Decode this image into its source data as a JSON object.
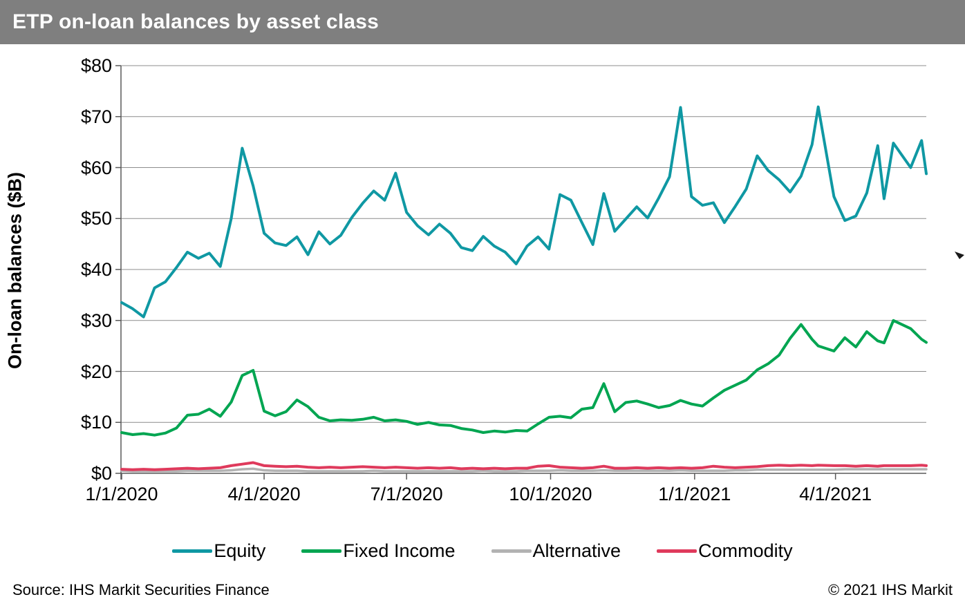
{
  "header": {
    "title": "ETP on-loan balances by asset class"
  },
  "footer": {
    "source": "Source: IHS Markit Securities Finance",
    "copyright": "© 2021 IHS Markit"
  },
  "colors": {
    "header_bar": "#7f7f7f",
    "gridline": "#8c8c8c",
    "axis": "#595959",
    "equity": "#0f98a3",
    "fixed_income": "#00a551",
    "alternative": "#b2b2b2",
    "commodity": "#df3a5c"
  },
  "chart_data": {
    "type": "line",
    "title": "ETP on-loan balances by asset class",
    "xlabel": "",
    "ylabel": "On-loan balances ($B)",
    "ylim": [
      0,
      80
    ],
    "ytick_values": [
      0,
      10,
      20,
      30,
      40,
      50,
      60,
      70,
      80
    ],
    "ytick_labels": [
      "$0",
      "$10",
      "$20",
      "$30",
      "$40",
      "$50",
      "$60",
      "$70",
      "$80"
    ],
    "grid": "horizontal",
    "legend_position": "bottom",
    "x_unit": "days since 1/1/2020",
    "x_range": [
      0,
      514
    ],
    "xticks": [
      {
        "label": "1/1/2020",
        "day": 0
      },
      {
        "label": "4/1/2020",
        "day": 91
      },
      {
        "label": "7/1/2020",
        "day": 182
      },
      {
        "label": "10/1/2020",
        "day": 274
      },
      {
        "label": "1/1/2021",
        "day": 366
      },
      {
        "label": "4/1/2021",
        "day": 456
      }
    ],
    "x_days": [
      0,
      7,
      14,
      21,
      28,
      35,
      42,
      49,
      56,
      63,
      70,
      77,
      84,
      91,
      98,
      105,
      112,
      119,
      126,
      133,
      140,
      147,
      154,
      161,
      168,
      175,
      182,
      189,
      196,
      203,
      210,
      217,
      224,
      231,
      238,
      245,
      252,
      259,
      266,
      273,
      280,
      287,
      294,
      301,
      308,
      315,
      322,
      329,
      336,
      343,
      350,
      357,
      364,
      371,
      378,
      385,
      392,
      399,
      406,
      413,
      420,
      427,
      434,
      441,
      445,
      455,
      462,
      469,
      476,
      483,
      487,
      493,
      504,
      511,
      514
    ],
    "series": [
      {
        "name": "Equity",
        "color": "#0f98a3",
        "line_width": 4,
        "values": [
          33.5,
          32.3,
          30.7,
          36.4,
          37.6,
          40.4,
          43.4,
          42.2,
          43.2,
          40.6,
          50.0,
          63.8,
          56.4,
          47.1,
          45.2,
          44.7,
          46.4,
          42.9,
          47.4,
          45.0,
          46.7,
          50.2,
          53.0,
          55.4,
          53.6,
          58.9,
          51.2,
          48.6,
          46.8,
          48.9,
          47.1,
          44.3,
          43.7,
          46.5,
          44.6,
          43.4,
          41.1,
          44.6,
          46.4,
          44.0,
          54.7,
          53.6,
          49.2,
          44.9,
          54.9,
          47.5,
          49.9,
          52.3,
          50.1,
          54.0,
          58.2,
          71.8,
          54.3,
          52.6,
          53.1,
          49.2,
          52.4,
          55.8,
          62.3,
          59.4,
          57.6,
          55.2,
          58.3,
          64.5,
          71.9,
          54.3,
          49.6,
          50.5,
          55.0,
          64.3,
          53.9,
          64.8,
          60.0,
          65.3,
          58.8
        ]
      },
      {
        "name": "Fixed Income",
        "color": "#00a551",
        "line_width": 4,
        "values": [
          8.0,
          7.6,
          7.8,
          7.5,
          7.9,
          8.9,
          11.4,
          11.6,
          12.6,
          11.2,
          14.0,
          19.2,
          20.2,
          12.2,
          11.3,
          12.1,
          14.4,
          13.1,
          11.0,
          10.3,
          10.5,
          10.4,
          10.6,
          11.0,
          10.3,
          10.5,
          10.2,
          9.6,
          10.0,
          9.5,
          9.4,
          8.8,
          8.5,
          8.0,
          8.3,
          8.1,
          8.4,
          8.3,
          9.7,
          11.0,
          11.2,
          10.9,
          12.6,
          12.9,
          17.6,
          12.1,
          13.9,
          14.2,
          13.6,
          12.9,
          13.3,
          14.3,
          13.6,
          13.2,
          14.8,
          16.3,
          17.3,
          18.3,
          20.3,
          21.5,
          23.2,
          26.5,
          29.2,
          26.3,
          25.0,
          24.0,
          26.6,
          24.8,
          27.8,
          26.0,
          25.6,
          30.0,
          28.4,
          26.3,
          25.7
        ]
      },
      {
        "name": "Alternative",
        "color": "#b2b2b2",
        "line_width": 3.5,
        "values": [
          0.5,
          0.4,
          0.4,
          0.4,
          0.4,
          0.4,
          0.5,
          0.5,
          0.5,
          0.5,
          0.6,
          0.8,
          0.9,
          0.6,
          0.5,
          0.5,
          0.5,
          0.4,
          0.4,
          0.4,
          0.4,
          0.4,
          0.4,
          0.5,
          0.4,
          0.4,
          0.4,
          0.4,
          0.4,
          0.4,
          0.4,
          0.4,
          0.4,
          0.5,
          0.4,
          0.4,
          0.4,
          0.5,
          0.5,
          0.5,
          0.6,
          0.5,
          0.5,
          0.5,
          0.6,
          0.5,
          0.5,
          0.5,
          0.5,
          0.5,
          0.5,
          0.6,
          0.5,
          0.5,
          0.5,
          0.5,
          0.6,
          0.6,
          0.7,
          0.7,
          0.7,
          0.7,
          0.7,
          0.7,
          0.7,
          0.7,
          0.8,
          0.8,
          0.8,
          0.8,
          0.8,
          0.8,
          0.8,
          0.8,
          0.8
        ]
      },
      {
        "name": "Commodity",
        "color": "#df3a5c",
        "line_width": 4,
        "values": [
          0.8,
          0.7,
          0.8,
          0.7,
          0.8,
          0.9,
          1.0,
          0.9,
          1.0,
          1.1,
          1.5,
          1.8,
          2.1,
          1.5,
          1.4,
          1.3,
          1.4,
          1.2,
          1.1,
          1.2,
          1.1,
          1.2,
          1.3,
          1.2,
          1.1,
          1.2,
          1.1,
          1.0,
          1.1,
          1.0,
          1.1,
          0.9,
          1.0,
          0.9,
          1.0,
          0.9,
          1.0,
          1.0,
          1.4,
          1.5,
          1.2,
          1.1,
          1.0,
          1.1,
          1.4,
          1.0,
          1.0,
          1.1,
          1.0,
          1.1,
          1.0,
          1.1,
          1.0,
          1.1,
          1.4,
          1.2,
          1.1,
          1.2,
          1.3,
          1.5,
          1.6,
          1.5,
          1.6,
          1.5,
          1.6,
          1.5,
          1.5,
          1.4,
          1.5,
          1.4,
          1.5,
          1.5,
          1.5,
          1.6,
          1.5
        ]
      }
    ]
  }
}
